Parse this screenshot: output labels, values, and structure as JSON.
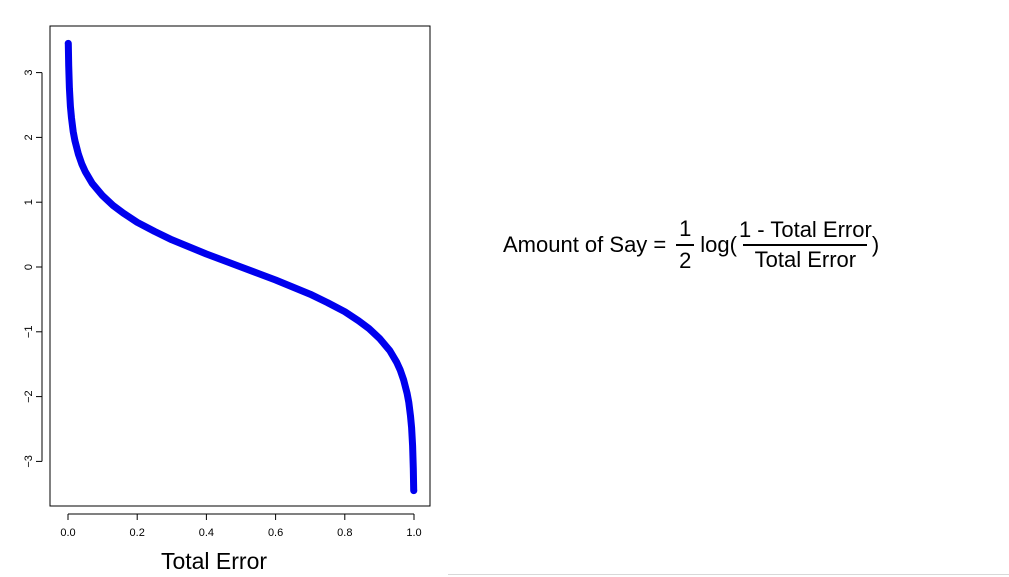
{
  "chart_data": {
    "type": "line",
    "xlabel": "Total Error",
    "ylabel": "",
    "xlim": [
      0,
      1
    ],
    "ylim": [
      -3.55,
      3.55
    ],
    "x_ticks": [
      0.0,
      0.2,
      0.4,
      0.6,
      0.8,
      1.0
    ],
    "x_tick_labels": [
      "0.0",
      "0.2",
      "0.4",
      "0.6",
      "0.8",
      "1.0"
    ],
    "y_ticks": [
      -3,
      -2,
      -1,
      0,
      1,
      2,
      3
    ],
    "y_tick_labels": [
      "−3",
      "−2",
      "−1",
      "0",
      "1",
      "2",
      "3"
    ],
    "series": [
      {
        "color": "#0000ee",
        "x": [
          0.0005,
          0.001,
          0.002,
          0.004,
          0.007,
          0.01,
          0.015,
          0.02,
          0.03,
          0.04,
          0.05,
          0.07,
          0.1,
          0.13,
          0.16,
          0.2,
          0.25,
          0.3,
          0.35,
          0.4,
          0.45,
          0.5,
          0.55,
          0.6,
          0.65,
          0.7,
          0.75,
          0.8,
          0.84,
          0.87,
          0.9,
          0.93,
          0.95,
          0.96,
          0.97,
          0.98,
          0.985,
          0.99,
          0.993,
          0.996,
          0.998,
          0.999,
          0.9995
        ],
        "y": [
          3.8,
          3.45,
          3.11,
          2.76,
          2.48,
          2.3,
          2.09,
          1.95,
          1.74,
          1.59,
          1.47,
          1.29,
          1.1,
          0.95,
          0.83,
          0.69,
          0.55,
          0.42,
          0.31,
          0.2,
          0.1,
          0.0,
          -0.1,
          -0.2,
          -0.31,
          -0.42,
          -0.55,
          -0.69,
          -0.83,
          -0.95,
          -1.1,
          -1.29,
          -1.47,
          -1.59,
          -1.74,
          -1.95,
          -2.09,
          -2.3,
          -2.48,
          -2.76,
          -3.11,
          -3.45,
          -3.8
        ]
      }
    ],
    "grid": false,
    "legend": "none"
  },
  "formula": {
    "lhs": "Amount of Say =",
    "half_numerator": "1",
    "half_denominator": "2",
    "log_label": "log(",
    "ratio_numerator": "1 - Total Error",
    "ratio_denominator": "Total Error",
    "close_paren": ")"
  }
}
